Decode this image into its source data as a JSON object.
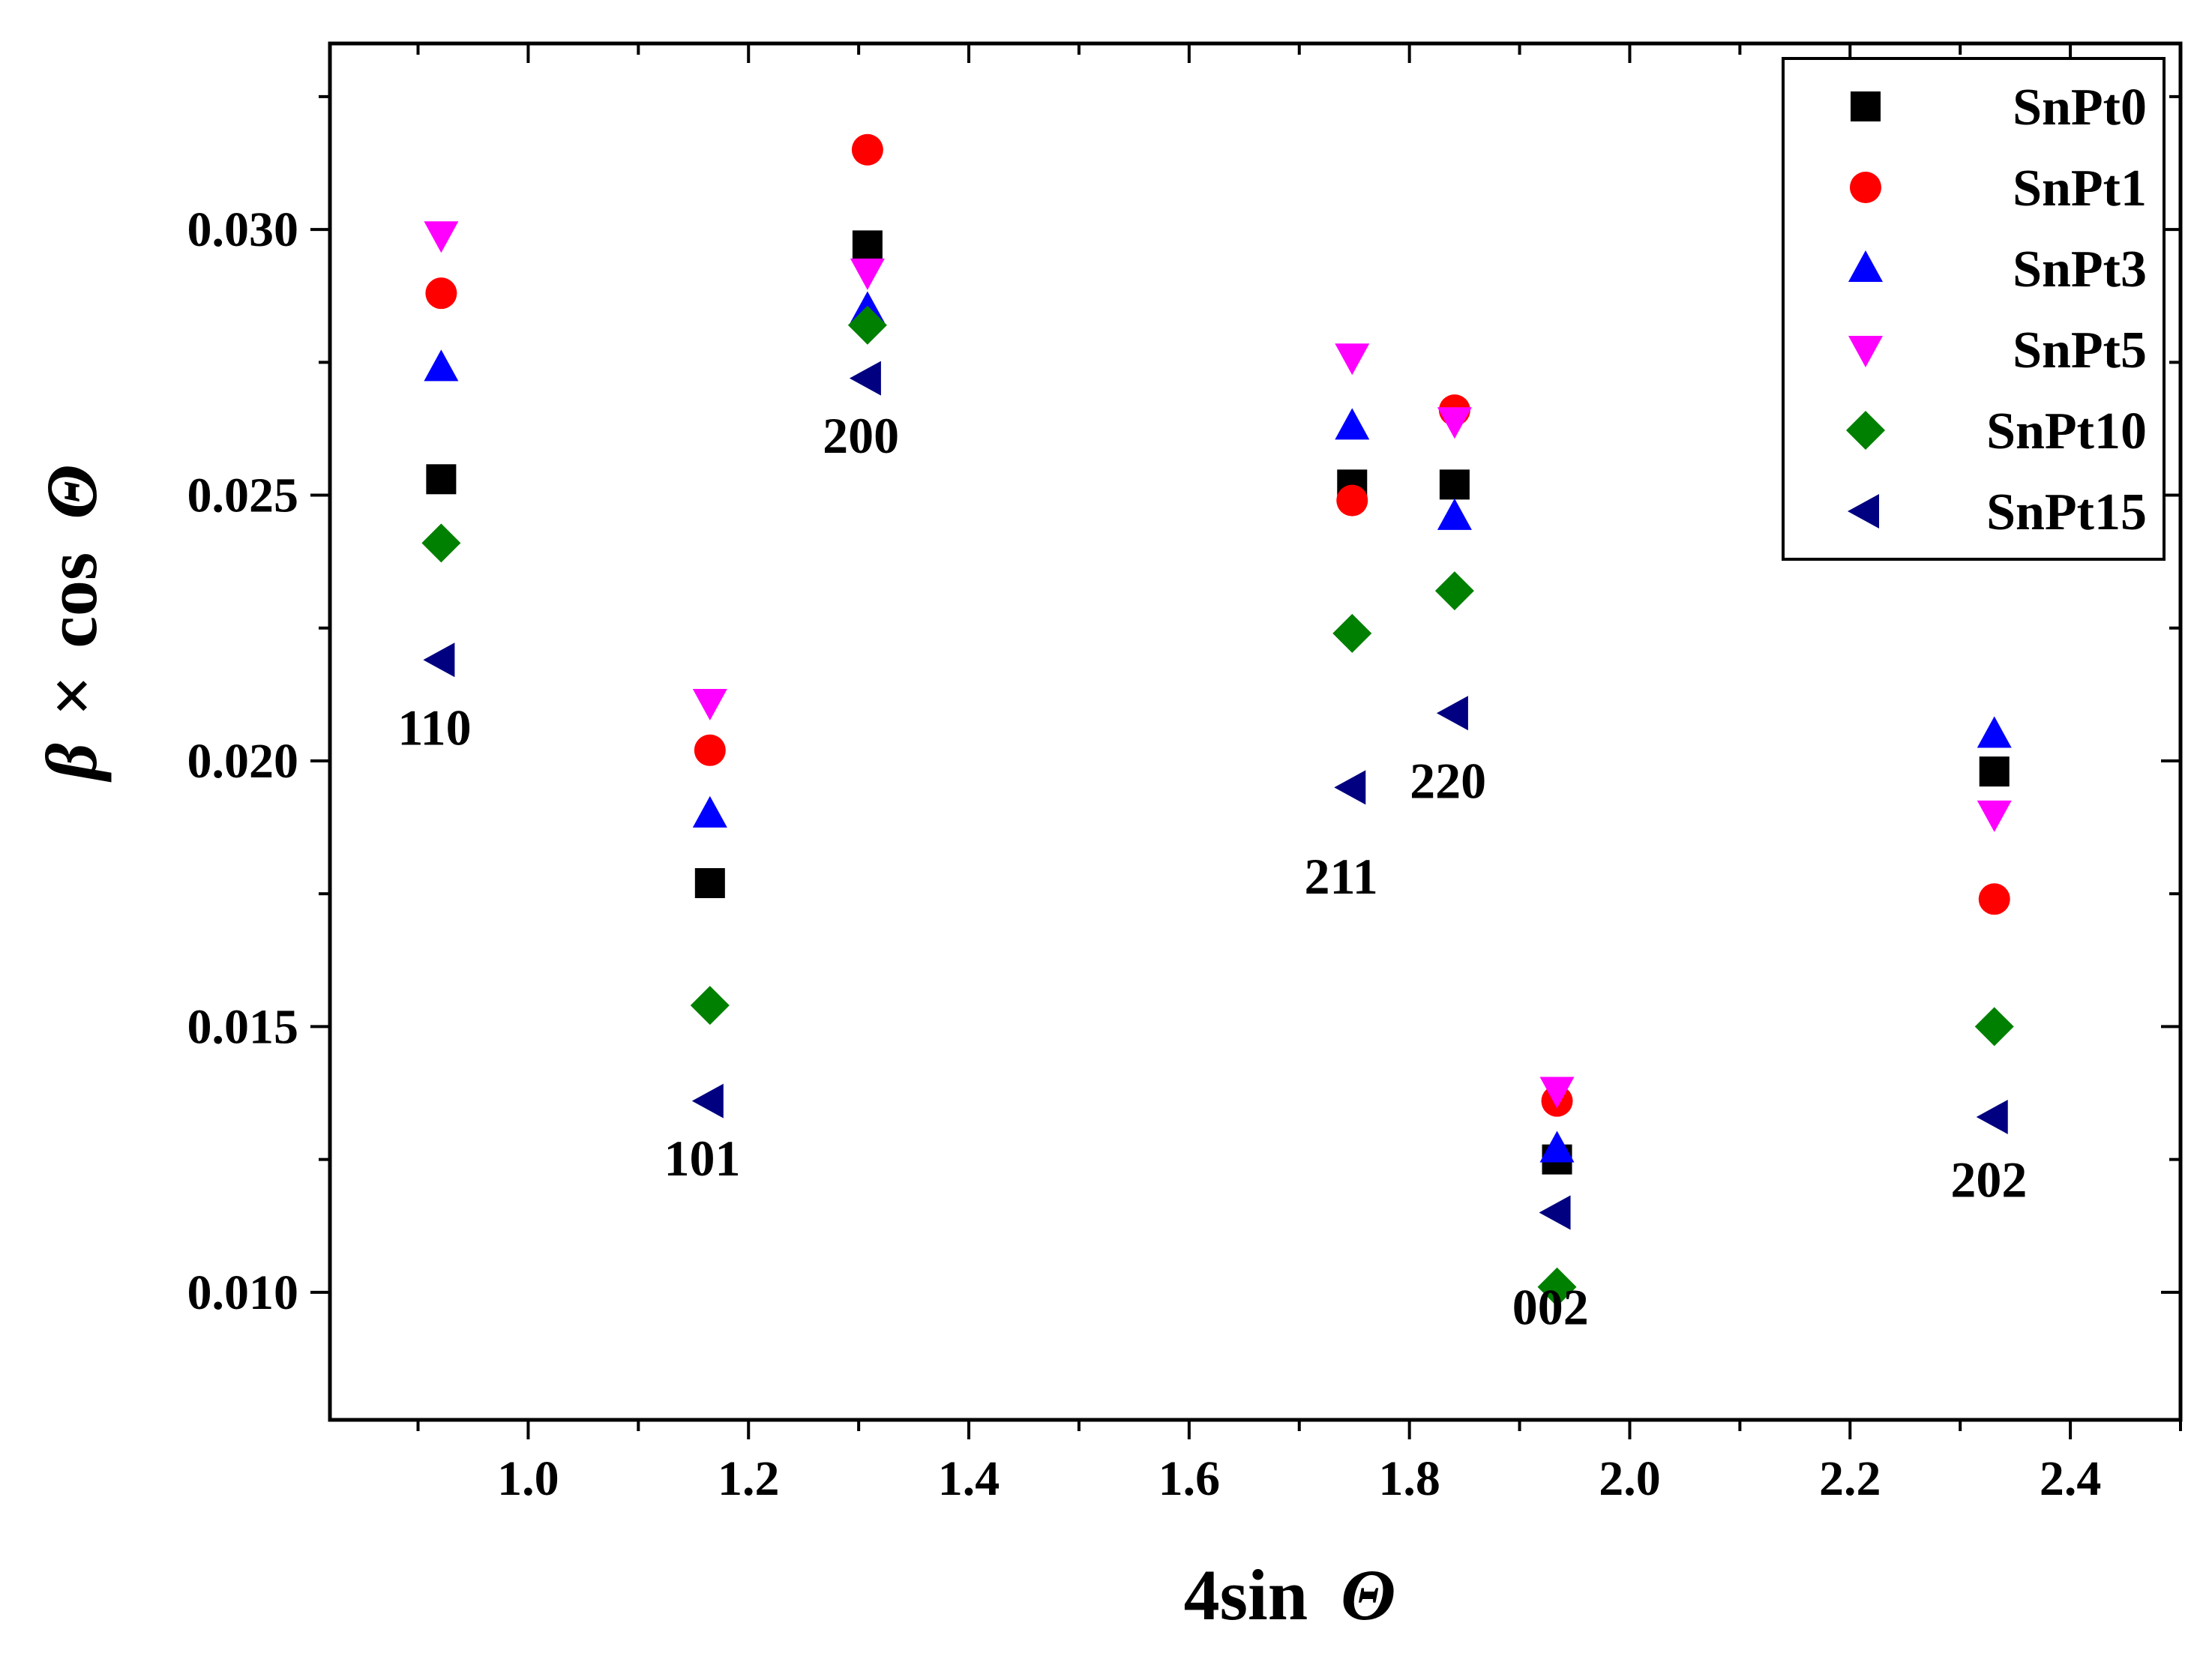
{
  "chart_data": {
    "type": "scatter",
    "title": "",
    "xlabel": {
      "main": "4sin",
      "symbol": "Θ"
    },
    "ylabel": {
      "beta": "β",
      "times": "×",
      "cos": "cos",
      "symbol": "Θ"
    },
    "xlim": [
      0.82,
      2.5
    ],
    "ylim": [
      0.0076,
      0.0335
    ],
    "xticks": [
      1.0,
      1.2,
      1.4,
      1.6,
      1.8,
      2.0,
      2.2,
      2.4
    ],
    "xtick_labels": [
      "1.0",
      "1.2",
      "1.4",
      "1.6",
      "1.8",
      "2.0",
      "2.2",
      "2.4"
    ],
    "yticks": [
      0.01,
      0.015,
      0.02,
      0.025,
      0.03
    ],
    "ytick_labels": [
      "0.010",
      "0.015",
      "0.020",
      "0.025",
      "0.030"
    ],
    "grid": false,
    "legend_position": "top-right",
    "series": [
      {
        "name": "SnPt0",
        "marker": "square",
        "color": "#000000",
        "x": [
          0.921,
          1.165,
          1.308,
          1.748,
          1.841,
          1.934,
          2.331
        ],
        "y": [
          0.0253,
          0.0177,
          0.0297,
          0.0252,
          0.0252,
          0.0125,
          0.0198
        ]
      },
      {
        "name": "SnPt1",
        "marker": "circle",
        "color": "#ff0000",
        "x": [
          0.921,
          1.165,
          1.308,
          1.748,
          1.841,
          1.934,
          2.331
        ],
        "y": [
          0.0288,
          0.0202,
          0.0315,
          0.0249,
          0.0266,
          0.0136,
          0.0174
        ]
      },
      {
        "name": "SnPt3",
        "marker": "triangle-up",
        "color": "#0000ff",
        "x": [
          0.921,
          1.165,
          1.308,
          1.748,
          1.841,
          1.934,
          2.331
        ],
        "y": [
          0.0274,
          0.019,
          0.0285,
          0.0263,
          0.0246,
          0.0127,
          0.0205
        ]
      },
      {
        "name": "SnPt5",
        "marker": "triangle-down",
        "color": "#ff00ff",
        "x": [
          0.921,
          1.165,
          1.308,
          1.748,
          1.841,
          1.934,
          2.331
        ],
        "y": [
          0.0299,
          0.0211,
          0.0292,
          0.0276,
          0.0264,
          0.0138,
          0.019
        ]
      },
      {
        "name": "SnPt10",
        "marker": "diamond",
        "color": "#008000",
        "x": [
          0.921,
          1.165,
          1.308,
          1.748,
          1.841,
          1.934,
          2.331
        ],
        "y": [
          0.0241,
          0.0154,
          0.0282,
          0.0224,
          0.0232,
          0.0101,
          0.015
        ]
      },
      {
        "name": "SnPt15",
        "marker": "triangle-left",
        "color": "#000080",
        "x": [
          0.921,
          1.165,
          1.308,
          1.748,
          1.841,
          1.934,
          2.331
        ],
        "y": [
          0.0219,
          0.0136,
          0.0272,
          0.0195,
          0.0209,
          0.0115,
          0.0133
        ]
      }
    ],
    "annotations": [
      {
        "text": "110",
        "x": 0.915,
        "y": 0.0203
      },
      {
        "text": "101",
        "x": 1.158,
        "y": 0.0122
      },
      {
        "text": "200",
        "x": 1.302,
        "y": 0.0258
      },
      {
        "text": "211",
        "x": 1.738,
        "y": 0.0175
      },
      {
        "text": "220",
        "x": 1.835,
        "y": 0.0193
      },
      {
        "text": "002",
        "x": 1.928,
        "y": 0.0094
      },
      {
        "text": "202",
        "x": 2.326,
        "y": 0.0118
      }
    ]
  }
}
